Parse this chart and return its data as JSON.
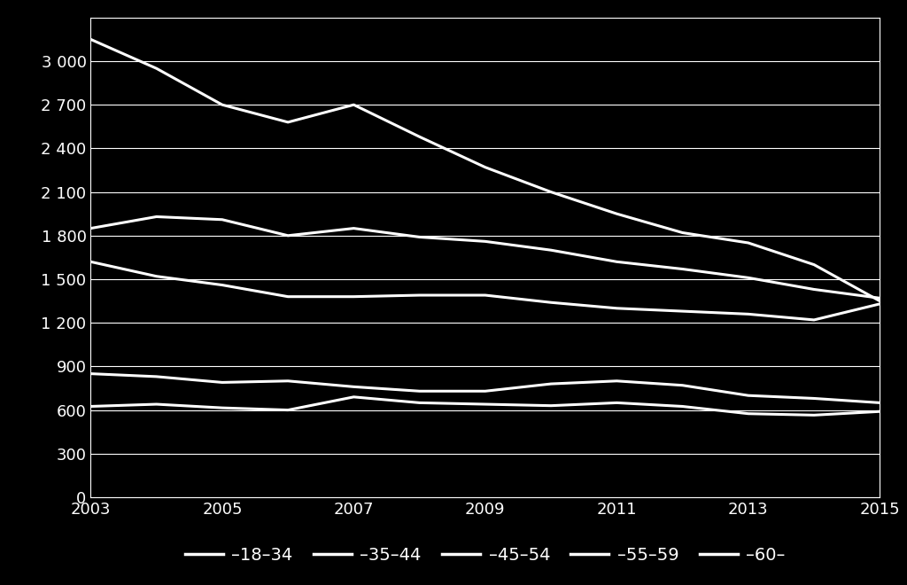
{
  "years": [
    2003,
    2004,
    2005,
    2006,
    2007,
    2008,
    2009,
    2010,
    2011,
    2012,
    2013,
    2014,
    2015
  ],
  "series": {
    "18-34": [
      3150,
      2950,
      2700,
      2580,
      2700,
      2480,
      2270,
      2100,
      1950,
      1820,
      1750,
      1600,
      1350
    ],
    "35-44": [
      1850,
      1930,
      1910,
      1800,
      1850,
      1790,
      1760,
      1700,
      1620,
      1570,
      1510,
      1430,
      1370
    ],
    "45-54": [
      1620,
      1520,
      1460,
      1380,
      1380,
      1390,
      1390,
      1340,
      1300,
      1280,
      1260,
      1220,
      1330
    ],
    "55-59": [
      850,
      830,
      790,
      800,
      760,
      730,
      730,
      780,
      800,
      770,
      700,
      680,
      650
    ],
    "60-": [
      625,
      640,
      615,
      600,
      690,
      650,
      640,
      630,
      650,
      625,
      575,
      565,
      590
    ]
  },
  "line_color": "#ffffff",
  "background_color": "#000000",
  "grid_color": "#ffffff",
  "tick_color": "#ffffff",
  "legend_labels": [
    "18–34",
    "35–44",
    "45–54",
    "55–59",
    "60–"
  ],
  "ylim": [
    0,
    3300
  ],
  "yticks": [
    0,
    300,
    600,
    900,
    1200,
    1500,
    1800,
    2100,
    2400,
    2700,
    3000
  ],
  "xlim": [
    2003,
    2015
  ],
  "xticks": [
    2003,
    2005,
    2007,
    2009,
    2011,
    2013,
    2015
  ],
  "linewidth": 2.2,
  "figsize": [
    10.24,
    6.6
  ],
  "dpi": 100
}
